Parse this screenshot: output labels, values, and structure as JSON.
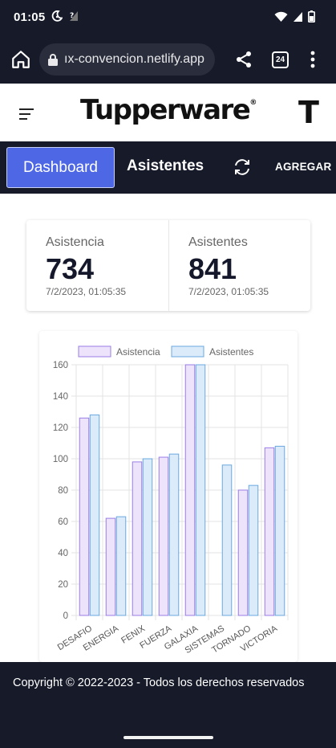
{
  "status_bar": {
    "time": "01:05"
  },
  "browser": {
    "url": "ıx-convencion.netlify.app",
    "tab_count": "24"
  },
  "header": {
    "logo_text": "Tupperware",
    "logo_mark": "®",
    "logo_cut": "T"
  },
  "nav": {
    "dashboard_label": "Dashboard",
    "asistentes_label": "Asistentes",
    "agregar_label": "AGREGAR",
    "active_color": "#4e67e4"
  },
  "stats": [
    {
      "label": "Asistencia",
      "value": "734",
      "time": "7/2/2023, 01:05:35"
    },
    {
      "label": "Asistentes",
      "value": "841",
      "time": "7/2/2023, 01:05:35"
    }
  ],
  "chart_data": {
    "type": "bar",
    "categories": [
      "DESAFIO",
      "ENERGIA",
      "FENIX",
      "FUERZA",
      "GALAXIA",
      "SISTEMAS",
      "TORNADO",
      "VICTORIA"
    ],
    "series": [
      {
        "name": "Asistencia",
        "values": [
          126,
          62,
          98,
          101,
          160,
          0,
          80,
          107
        ],
        "fill": "#ede3fb",
        "stroke": "#9a7ee6"
      },
      {
        "name": "Asistentes",
        "values": [
          128,
          63,
          100,
          103,
          160,
          96,
          83,
          108
        ],
        "fill": "#dcebf9",
        "stroke": "#6aa8e0"
      }
    ],
    "ylim": [
      0,
      160
    ],
    "yticks": [
      0,
      20,
      40,
      60,
      80,
      100,
      120,
      140,
      160
    ],
    "grid": true,
    "legend": "top"
  },
  "footer": {
    "copyright": "Copyright © 2022-2023 - Todos los derechos reservados"
  }
}
